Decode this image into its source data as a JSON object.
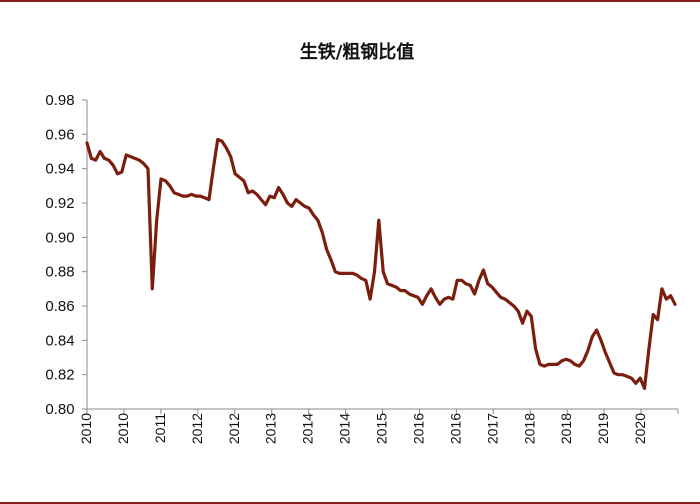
{
  "chart_data": {
    "type": "line",
    "title": "生铁/粗钢比值",
    "xlabel": "",
    "ylabel": "",
    "ylim": [
      0.8,
      0.98
    ],
    "y_ticks": [
      "0.80",
      "0.82",
      "0.84",
      "0.86",
      "0.88",
      "0.90",
      "0.92",
      "0.94",
      "0.96",
      "0.98"
    ],
    "x_tick_labels": [
      "2010",
      "2010",
      "2011",
      "2012",
      "2012",
      "2013",
      "2014",
      "2014",
      "2015",
      "2016",
      "2016",
      "2017",
      "2018",
      "2018",
      "2019",
      "2020"
    ],
    "line_color": "#7b1e0e",
    "axis_color": "#888888",
    "grid": false,
    "legend": "none",
    "series": [
      {
        "values": [
          0.955,
          0.946,
          0.945,
          0.95,
          0.946,
          0.945,
          0.942,
          0.937,
          0.938,
          0.948,
          0.947,
          0.946,
          0.945,
          0.943,
          0.94,
          0.87,
          0.91,
          0.934,
          0.933,
          0.93,
          0.926,
          0.925,
          0.924,
          0.924,
          0.925,
          0.924,
          0.924,
          0.923,
          0.922,
          0.94,
          0.957,
          0.956,
          0.952,
          0.947,
          0.937,
          0.935,
          0.933,
          0.926,
          0.927,
          0.925,
          0.922,
          0.919,
          0.924,
          0.923,
          0.929,
          0.925,
          0.92,
          0.918,
          0.922,
          0.92,
          0.918,
          0.917,
          0.913,
          0.91,
          0.903,
          0.893,
          0.887,
          0.88,
          0.879,
          0.879,
          0.879,
          0.879,
          0.878,
          0.876,
          0.875,
          0.864,
          0.88,
          0.91,
          0.88,
          0.873,
          0.872,
          0.871,
          0.869,
          0.869,
          0.867,
          0.866,
          0.865,
          0.861,
          0.866,
          0.87,
          0.865,
          0.861,
          0.864,
          0.865,
          0.864,
          0.875,
          0.875,
          0.873,
          0.872,
          0.867,
          0.875,
          0.881,
          0.873,
          0.871,
          0.868,
          0.865,
          0.864,
          0.862,
          0.86,
          0.857,
          0.85,
          0.857,
          0.854,
          0.835,
          0.826,
          0.825,
          0.826,
          0.826,
          0.826,
          0.828,
          0.829,
          0.828,
          0.826,
          0.825,
          0.828,
          0.834,
          0.842,
          0.846,
          0.84,
          0.833,
          0.827,
          0.821,
          0.82,
          0.82,
          0.819,
          0.818,
          0.815,
          0.818,
          0.812,
          0.835,
          0.855,
          0.852,
          0.87,
          0.864,
          0.866,
          0.861
        ]
      }
    ]
  }
}
